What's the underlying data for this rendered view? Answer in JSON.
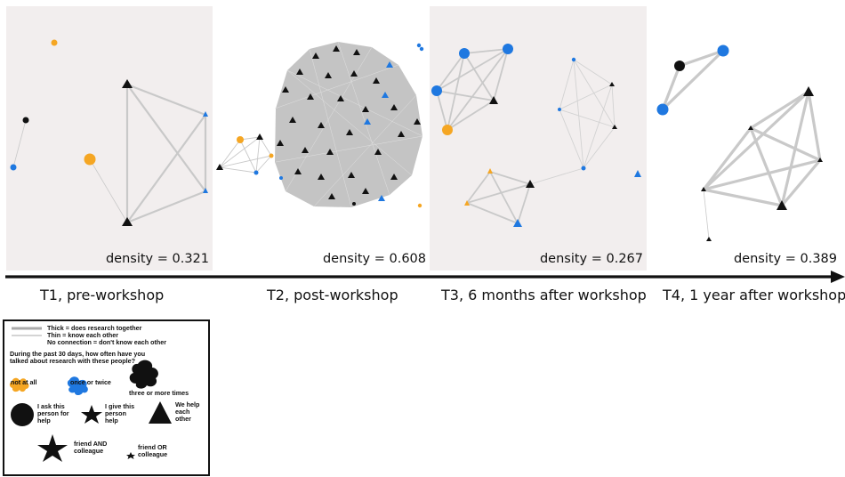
{
  "colors": {
    "not_at_all": "#f5a623",
    "once_or_twice": "#1f78e0",
    "three_or_more": "#111111",
    "edge": "#c9c9c9",
    "panel_bg": "#f2eeee"
  },
  "panels": [
    {
      "id": "t1",
      "density": "density = 0.321",
      "label": "T1, pre-workshop"
    },
    {
      "id": "t2",
      "density": "density = 0.608",
      "label": "T2, post-workshop"
    },
    {
      "id": "t3",
      "density": "density = 0.267",
      "label": "T3, 6 months after workshop"
    },
    {
      "id": "t4",
      "density": "density = 0.389",
      "label": "T4, 1 year after workshop"
    }
  ],
  "legend": {
    "thick": "Thick = does research together",
    "thin": "Thin = know each other",
    "none": "No connection = don't know each other",
    "question": "During the past 30 days, how often have you talked about research with these people?",
    "not_at_all": "not at all",
    "once_or_twice": "once or twice",
    "three_or_more": "three or more times",
    "circle": "I ask this person for help",
    "star": "I give this person help",
    "triangle": "We help each other",
    "big_star": "friend AND colleague",
    "small_star": "friend OR colleague"
  }
}
